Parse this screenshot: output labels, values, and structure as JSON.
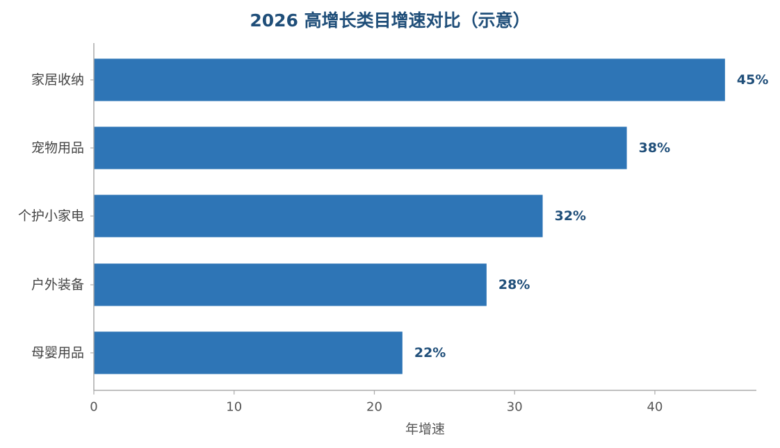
{
  "chart_data": {
    "type": "bar",
    "orientation": "horizontal",
    "title": "2026 高增长类目增速对比（示意）",
    "xlabel": "年增速",
    "ylabel": "",
    "categories": [
      "家居收纳",
      "宠物用品",
      "个护小家电",
      "户外装备",
      "母婴用品"
    ],
    "values": [
      45,
      38,
      32,
      28,
      22
    ],
    "data_labels": [
      "45%",
      "38%",
      "32%",
      "28%",
      "22%"
    ],
    "xlim": [
      0,
      47
    ],
    "xticks": [
      0,
      10,
      20,
      30,
      40
    ],
    "xtick_labels": [
      "0",
      "10",
      "20",
      "30",
      "40"
    ],
    "grid": false,
    "legend": "none"
  },
  "colors": {
    "bar": "#2e75b6",
    "title": "#1f4e79",
    "data_label": "#1f4e79",
    "axis": "#aaaaaa"
  }
}
